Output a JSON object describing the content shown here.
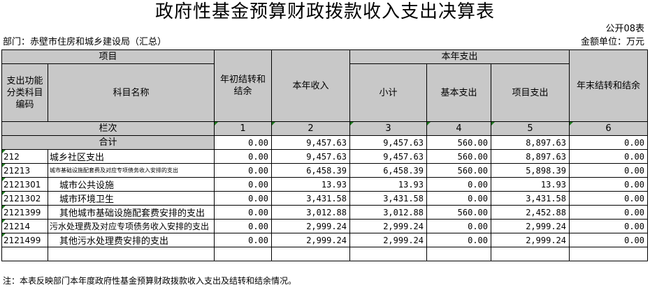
{
  "title": "政府性基金预算财政拨款收入支出决算表",
  "table_no": "公开08表",
  "dept": "部门：赤壁市住房和城乡建设局（汇总）",
  "unit": "金额单位：万元",
  "headers": {
    "item": "项目",
    "code": "支出功能分类科目编码",
    "name": "科目名称",
    "begin": "年初结转和结余",
    "income": "本年收入",
    "expense": "本年支出",
    "subtotal": "小计",
    "basic": "基本支出",
    "project": "项目支出",
    "end": "年末结转和结余",
    "col_label": "栏次",
    "col_nums": [
      "1",
      "2",
      "3",
      "4",
      "5",
      "6"
    ]
  },
  "total": {
    "label": "合计",
    "values": [
      "0.00",
      "9,457.63",
      "9,457.63",
      "560.00",
      "8,897.63",
      "0.00"
    ]
  },
  "rows": [
    {
      "code": "212",
      "name": "城乡社区支出",
      "values": [
        "0.00",
        "9,457.63",
        "9,457.63",
        "560.00",
        "8,897.63",
        "0.00"
      ]
    },
    {
      "code": "21213",
      "name": "城市基础设施配套费及对应专项债务收入安排的支出",
      "values": [
        "0.00",
        "6,458.39",
        "6,458.39",
        "560.00",
        "5,898.39",
        "0.00"
      ]
    },
    {
      "code": "2121301",
      "name": "城市公共设施",
      "values": [
        "0.00",
        "13.93",
        "13.93",
        "0.00",
        "13.93",
        "0.00"
      ]
    },
    {
      "code": "2121302",
      "name": "城市环境卫生",
      "values": [
        "0.00",
        "3,431.58",
        "3,431.58",
        "0.00",
        "3,431.58",
        "0.00"
      ]
    },
    {
      "code": "2121399",
      "name": "其他城市基础设施配套费安排的支出",
      "values": [
        "0.00",
        "3,012.88",
        "3,012.88",
        "560.00",
        "2,452.88",
        "0.00"
      ]
    },
    {
      "code": "21214",
      "name": "污水处理费及对应专项债务收入安排的支出",
      "values": [
        "0.00",
        "2,999.24",
        "2,999.24",
        "0.00",
        "2,999.24",
        "0.00"
      ]
    },
    {
      "code": "2121499",
      "name": "其他污水处理费安排的支出",
      "values": [
        "0.00",
        "2,999.24",
        "2,999.24",
        "0.00",
        "2,999.24",
        "0.00"
      ]
    }
  ],
  "note": "注：本表反映部门本年度政府性基金预算财政拨款收入支出及结转和结余情况。"
}
